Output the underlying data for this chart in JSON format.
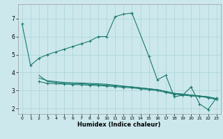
{
  "xlabel": "Humidex (Indice chaleur)",
  "bg_color": "#cce8ec",
  "grid_color": "#aad4d8",
  "line_color": "#1a7a6e",
  "xlim": [
    -0.5,
    23.5
  ],
  "ylim": [
    1.7,
    7.8
  ],
  "xticks": [
    0,
    1,
    2,
    3,
    4,
    5,
    6,
    7,
    8,
    9,
    10,
    11,
    12,
    13,
    14,
    15,
    16,
    17,
    18,
    19,
    20,
    21,
    22,
    23
  ],
  "yticks": [
    2,
    3,
    4,
    5,
    6,
    7
  ],
  "main_x": [
    0,
    1,
    2,
    3,
    4,
    5,
    6,
    7,
    8,
    9,
    10,
    11,
    12,
    13,
    15,
    16,
    17,
    18,
    19,
    20,
    21,
    22,
    23
  ],
  "main_y": [
    6.7,
    4.4,
    4.8,
    5.0,
    5.15,
    5.3,
    5.45,
    5.6,
    5.75,
    6.0,
    6.0,
    7.1,
    7.25,
    7.3,
    4.9,
    3.6,
    3.85,
    2.65,
    2.75,
    3.2,
    2.25,
    1.95,
    2.6
  ],
  "flat1_x": [
    2,
    3,
    4,
    5,
    6,
    7,
    8,
    9,
    10,
    11,
    12,
    13,
    14,
    15,
    16,
    17,
    18,
    19,
    20,
    21,
    22,
    23
  ],
  "flat1_y": [
    3.85,
    3.5,
    3.45,
    3.4,
    3.4,
    3.38,
    3.35,
    3.33,
    3.3,
    3.27,
    3.23,
    3.2,
    3.15,
    3.1,
    3.05,
    2.95,
    2.85,
    2.8,
    2.75,
    2.7,
    2.65,
    2.55
  ],
  "flat2_x": [
    2,
    3,
    4,
    5,
    6,
    7,
    8,
    9,
    10,
    11,
    12,
    13,
    14,
    15,
    16,
    17,
    18,
    19,
    20,
    21,
    22,
    23
  ],
  "flat2_y": [
    3.7,
    3.55,
    3.5,
    3.45,
    3.43,
    3.42,
    3.4,
    3.38,
    3.35,
    3.3,
    3.25,
    3.2,
    3.15,
    3.1,
    3.05,
    2.95,
    2.85,
    2.8,
    2.75,
    2.7,
    2.65,
    2.55
  ],
  "flat3_x": [
    2,
    3,
    4,
    5,
    6,
    7,
    8,
    9,
    10,
    11,
    12,
    13,
    14,
    15,
    16,
    17,
    18,
    19,
    20,
    21,
    22,
    23
  ],
  "flat3_y": [
    3.5,
    3.4,
    3.38,
    3.36,
    3.34,
    3.32,
    3.3,
    3.28,
    3.25,
    3.22,
    3.18,
    3.15,
    3.1,
    3.05,
    3.0,
    2.9,
    2.8,
    2.75,
    2.7,
    2.68,
    2.6,
    2.5
  ],
  "upper_x": [
    0,
    1,
    2,
    3,
    4,
    5,
    6,
    7,
    8,
    9,
    10
  ],
  "upper_y": [
    6.7,
    4.4,
    4.8,
    5.0,
    5.15,
    5.3,
    5.45,
    5.6,
    5.75,
    6.0,
    6.0
  ]
}
